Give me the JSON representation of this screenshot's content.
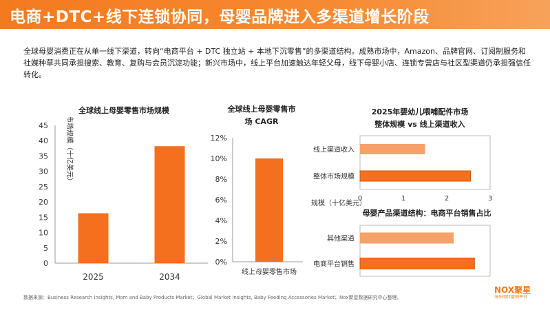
{
  "header": {
    "title": "电商+DTC+线下连锁协同，母婴品牌进入多渠道增长阶段"
  },
  "intro": {
    "text": "全球母婴消费正在从单一线下渠道，转向“电商平台 + DTC 独立站 + 本地下沉零售”的多渠道结构。成熟市场中，Amazon、品牌官网、订阅制服务和社媒种草共同承担搜索、教育、复购与会员沉淀功能；新兴市场中，线上平台加速触达年轻父母，线下母婴小店、连锁专营店与社区型渠道仍承担强信任转化。"
  },
  "colors": {
    "accent": "#f47a20",
    "accent_light": "#f6a06a",
    "bar_dark": "#f4701f"
  },
  "chart_data": [
    {
      "type": "bar",
      "title": "全球线上母婴零售市场规模",
      "ylabel": "市场规模（十亿美元）",
      "categories": [
        "2025",
        "2034"
      ],
      "values": [
        16.3,
        38.2
      ],
      "ylim": [
        0,
        45
      ],
      "yticks": [
        "0",
        "5",
        "10",
        "15",
        "20",
        "25",
        "30",
        "35",
        "40",
        "45"
      ],
      "grid": false
    },
    {
      "type": "bar",
      "title": "全球线上母婴零售市\n场 CAGR",
      "categories": [
        "线上母婴零售市场"
      ],
      "values": [
        10.0
      ],
      "ylim": [
        0,
        12
      ],
      "yticks": [
        "0%",
        "2%",
        "4%",
        "6%",
        "8%",
        "10%",
        "12%"
      ],
      "grid": false
    },
    {
      "type": "bar",
      "orientation": "horizontal",
      "title": "2025年婴幼儿喂哺配件市场\n整体规模 vs 线上渠道收入",
      "categories": [
        "线上渠道收入",
        "整体市场规模"
      ],
      "values": [
        1.5,
        2.55
      ],
      "xlabel": "规模（十亿美元）",
      "xlim": [
        0,
        3
      ],
      "xticks": [
        "0",
        "1",
        "2",
        "3"
      ],
      "colors": [
        "#f6a06a",
        "#f4701f"
      ]
    },
    {
      "type": "bar",
      "orientation": "horizontal",
      "title": "母婴产品渠道结构：电商平台销售占比",
      "categories": [
        "其他渠道",
        "电商平台销售"
      ],
      "values": [
        0.72,
        0.88
      ],
      "xlim": [
        0,
        1
      ],
      "colors": [
        "#f6a06a",
        "#f4701f"
      ]
    }
  ],
  "footer": {
    "source": "数据来源：Business Research Insights, Mom and Baby Products Market；Global Market Insights, Baby Feeding Accessories Market；Nox聚星数据研究中心整理。"
  },
  "logo": {
    "main": "NOX聚星",
    "sub": "海外网红营销平台"
  }
}
